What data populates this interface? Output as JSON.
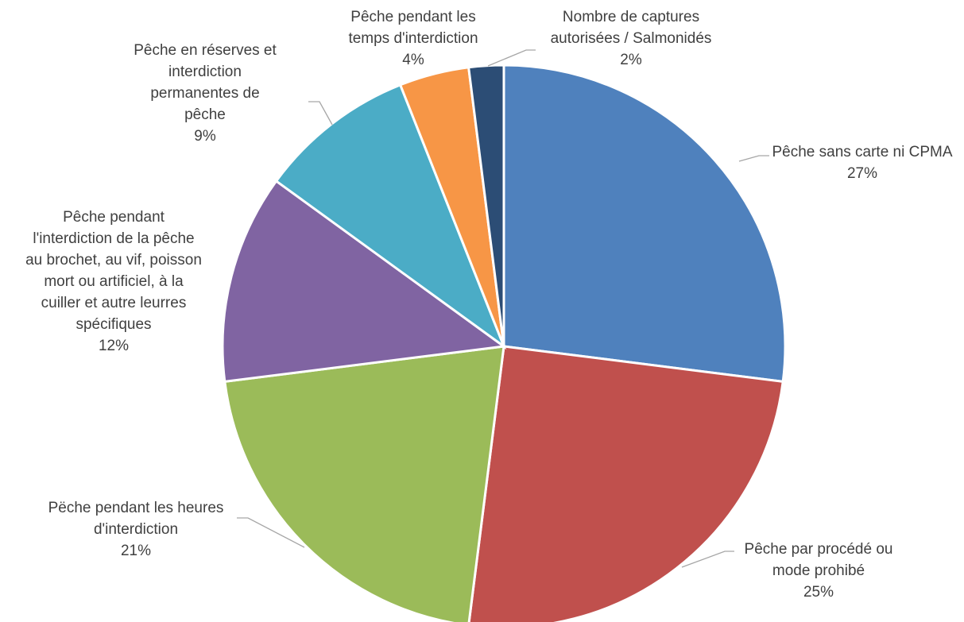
{
  "chart_data": {
    "type": "pie",
    "start_angle_deg": 0,
    "direction": "clockwise",
    "data_labels": "category-and-percent",
    "legend": "none",
    "slices": [
      {
        "label": "Pêche sans carte ni CPMA",
        "value": 27,
        "percent": "27%",
        "color": "#4f81bd"
      },
      {
        "label": "Pêche par procédé ou mode prohibé",
        "value": 25,
        "percent": "25%",
        "color": "#c0504d"
      },
      {
        "label": "Pëche pendant les heures d'interdiction",
        "value": 21,
        "percent": "21%",
        "color": "#9bbb59"
      },
      {
        "label": "Pêche pendant l'interdiction de la pêche au brochet, au vif, poisson mort ou artificiel, à la cuiller et autre leurres spécifiques",
        "value": 12,
        "percent": "12%",
        "color": "#8064a2"
      },
      {
        "label": "Pêche en réserves et interdiction permanentes de pêche",
        "value": 9,
        "percent": "9%",
        "color": "#4bacc6"
      },
      {
        "label": "Pêche pendant les temps d'interdiction",
        "value": 4,
        "percent": "4%",
        "color": "#f79646"
      },
      {
        "label": "Nombre de captures autorisées / Salmonidés",
        "value": 2,
        "percent": "2%",
        "color": "#2c4d75"
      }
    ]
  }
}
